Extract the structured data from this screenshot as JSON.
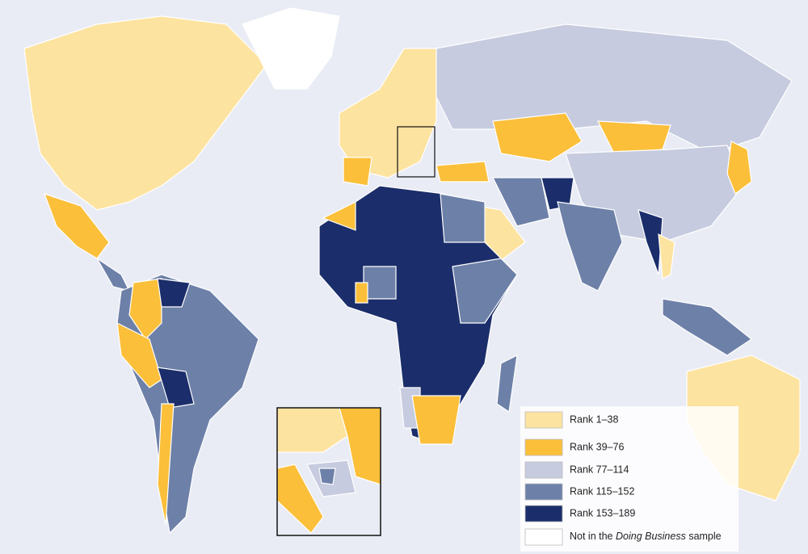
{
  "legend": {
    "items": [
      {
        "label": "Rank 1–38",
        "color": "#fde3a0"
      },
      {
        "label": "Rank 39–76",
        "color": "#fbbf3a"
      },
      {
        "label": "Rank 77–114",
        "color": "#c6cbdf"
      },
      {
        "label": "Rank 115–152",
        "color": "#6d80a8"
      },
      {
        "label": "Rank 153–189",
        "color": "#1b2e6b"
      },
      {
        "label": [
          "Not in the ",
          "Doing Business",
          " sample"
        ],
        "color": "#ffffff"
      }
    ]
  }
}
